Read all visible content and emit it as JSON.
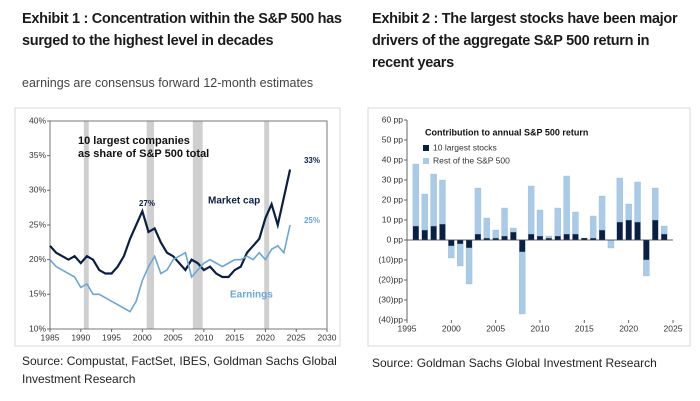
{
  "chart_data": [
    {
      "type": "line",
      "title": "Exhibit 1 : Concentration within the S&P 500 has surged to the highest level in decades",
      "subtitle": "earnings are consensus forward 12-month estimates",
      "inner_title": [
        "10 largest companies",
        "as share of S&P 500 total"
      ],
      "annotations": [
        "27%",
        "33%",
        "25%"
      ],
      "source": "Source: Compustat, FactSet, IBES, Goldman Sachs Global Investment Research",
      "x": [
        1985,
        1986,
        1987,
        1988,
        1989,
        1990,
        1991,
        1992,
        1993,
        1994,
        1995,
        1996,
        1997,
        1998,
        1999,
        2000,
        2001,
        2002,
        2003,
        2004,
        2005,
        2006,
        2007,
        2008,
        2009,
        2010,
        2011,
        2012,
        2013,
        2014,
        2015,
        2016,
        2017,
        2018,
        2019,
        2020,
        2021,
        2022,
        2023,
        2024
      ],
      "series": [
        {
          "name": "Market cap",
          "color": "#0b1f45",
          "values": [
            22,
            21,
            20.5,
            20,
            20.5,
            19.5,
            20.5,
            20,
            18.5,
            18,
            18,
            19,
            20.5,
            23,
            25,
            27,
            24,
            24.5,
            22.5,
            21,
            20.5,
            19.5,
            18.5,
            20,
            19.5,
            18.5,
            19,
            18,
            17.5,
            17.5,
            18.5,
            19,
            21,
            22,
            23,
            26,
            28,
            25,
            29,
            33
          ]
        },
        {
          "name": "Earnings",
          "color": "#6aa6d8",
          "values": [
            20,
            19,
            18.5,
            18,
            17.5,
            16,
            16.5,
            15,
            15,
            14.5,
            14,
            13.5,
            13,
            12.5,
            14,
            17,
            19,
            20.5,
            18,
            18.5,
            20,
            20.5,
            21,
            17.5,
            18.5,
            19.5,
            20,
            19.5,
            19,
            19.5,
            20,
            20,
            20.5,
            20,
            21,
            20,
            21.5,
            22,
            21,
            25
          ]
        }
      ],
      "shaded_periods": [
        [
          1990.5,
          1991.3
        ],
        [
          2000.7,
          2001.9
        ],
        [
          2008.2,
          2009.8
        ],
        [
          2019.8,
          2020.6
        ]
      ],
      "shade_color": "#cfcfcf",
      "xlim": [
        1985,
        2030
      ],
      "xticks": [
        1985,
        1990,
        1995,
        2000,
        2005,
        2010,
        2015,
        2020,
        2025,
        2030
      ],
      "ylim": [
        10,
        40
      ],
      "yticks": [
        {
          "value": 10,
          "label": "10%"
        },
        {
          "value": 15,
          "label": "15%"
        },
        {
          "value": 20,
          "label": "20%"
        },
        {
          "value": 25,
          "label": "25%"
        },
        {
          "value": 30,
          "label": "30%"
        },
        {
          "value": 35,
          "label": "35%"
        },
        {
          "value": 40,
          "label": "40%"
        }
      ]
    },
    {
      "type": "bar",
      "title": "Exhibit 2 : The largest stocks have been major drivers of the aggregate S&P 500 return in recent years",
      "inner_title": "Contribution to annual S&P 500 return",
      "source": "Source: Goldman Sachs Global Investment Research",
      "stacked": true,
      "x": [
        1996,
        1997,
        1998,
        1999,
        2000,
        2001,
        2002,
        2003,
        2004,
        2005,
        2006,
        2007,
        2008,
        2009,
        2010,
        2011,
        2012,
        2013,
        2014,
        2015,
        2016,
        2017,
        2018,
        2019,
        2020,
        2021,
        2022,
        2023,
        2024
      ],
      "series": [
        {
          "name": "10 largest stocks",
          "color": "#0b1f45",
          "values": [
            7,
            5,
            7,
            8,
            -3,
            -2,
            -4,
            3,
            1,
            1,
            2,
            4,
            -6,
            3,
            2,
            1,
            2,
            3,
            3,
            1,
            1,
            5,
            0,
            9,
            10,
            9,
            -10,
            10,
            3
          ]
        },
        {
          "name": "Rest of the S&P 500",
          "color": "#a9cbe8",
          "values": [
            31,
            18,
            26,
            22,
            -6,
            -11,
            -18,
            23,
            10,
            4,
            14,
            2,
            -31,
            24,
            13,
            1,
            14,
            29,
            11,
            0,
            11,
            17,
            -4,
            22,
            8,
            20,
            -8,
            16,
            4
          ]
        }
      ],
      "xlim": [
        1995,
        2025
      ],
      "xticks": [
        1995,
        2000,
        2005,
        2010,
        2015,
        2020,
        2025
      ],
      "ylim": [
        -40,
        60
      ],
      "yticks": [
        {
          "value": 60,
          "label": "60 pp"
        },
        {
          "value": 50,
          "label": "50 pp"
        },
        {
          "value": 40,
          "label": "40 pp"
        },
        {
          "value": 30,
          "label": "30 pp"
        },
        {
          "value": 20,
          "label": "20 pp"
        },
        {
          "value": 10,
          "label": "10 pp"
        },
        {
          "value": 0,
          "label": "0 pp"
        },
        {
          "value": -10,
          "label": "(10)pp"
        },
        {
          "value": -20,
          "label": "(20)pp"
        },
        {
          "value": -30,
          "label": "(30)pp"
        },
        {
          "value": -40,
          "label": "(40)pp"
        }
      ]
    }
  ]
}
